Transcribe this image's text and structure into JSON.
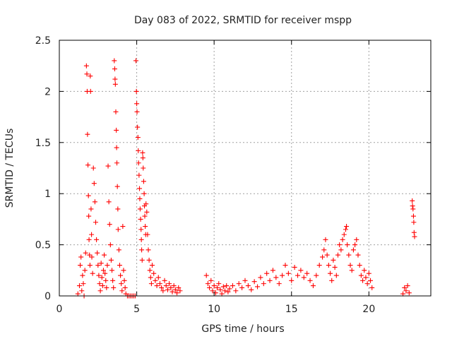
{
  "chart_data": {
    "type": "scatter",
    "title": "Day 083 of 2022, SRMTID for receiver mspp",
    "xlabel": "GPS time / hours",
    "ylabel": "SRMTID / TECUs",
    "xlim": [
      0,
      24
    ],
    "ylim": [
      0,
      2.5
    ],
    "xticks": [
      0,
      5,
      10,
      15,
      20
    ],
    "xtick_labels": [
      "0",
      "5",
      "10",
      "15",
      "20"
    ],
    "yticks": [
      0,
      0.5,
      1,
      1.5,
      2,
      2.5
    ],
    "ytick_labels": [
      "0",
      "0.5",
      "1",
      "1.5",
      "2",
      "2.5"
    ],
    "grid": true,
    "marker": "plus",
    "series": [
      {
        "name": "SRMTID",
        "color": "#ff0000",
        "points": [
          [
            1.2,
            0.02
          ],
          [
            1.3,
            0.1
          ],
          [
            1.35,
            0.3
          ],
          [
            1.4,
            0.38
          ],
          [
            1.45,
            0.05
          ],
          [
            1.5,
            0.2
          ],
          [
            1.55,
            0.12
          ],
          [
            1.6,
            0.0
          ],
          [
            1.65,
            0.25
          ],
          [
            1.7,
            0.42
          ],
          [
            1.75,
            2.25
          ],
          [
            1.78,
            2.17
          ],
          [
            1.8,
            2.0
          ],
          [
            1.82,
            1.58
          ],
          [
            1.85,
            1.28
          ],
          [
            1.88,
            0.98
          ],
          [
            1.9,
            0.78
          ],
          [
            1.92,
            0.55
          ],
          [
            1.95,
            0.4
          ],
          [
            1.98,
            0.3
          ],
          [
            2.0,
            2.15
          ],
          [
            2.02,
            2.0
          ],
          [
            2.05,
            0.85
          ],
          [
            2.08,
            0.6
          ],
          [
            2.1,
            0.38
          ],
          [
            2.15,
            0.22
          ],
          [
            2.2,
            1.25
          ],
          [
            2.25,
            1.1
          ],
          [
            2.3,
            0.92
          ],
          [
            2.35,
            0.72
          ],
          [
            2.4,
            0.55
          ],
          [
            2.45,
            0.42
          ],
          [
            2.5,
            0.3
          ],
          [
            2.55,
            0.2
          ],
          [
            2.6,
            0.12
          ],
          [
            2.65,
            0.05
          ],
          [
            2.7,
            0.32
          ],
          [
            2.75,
            0.18
          ],
          [
            2.8,
            0.1
          ],
          [
            2.85,
            0.25
          ],
          [
            2.9,
            0.4
          ],
          [
            2.95,
            0.22
          ],
          [
            3.0,
            0.15
          ],
          [
            3.05,
            0.08
          ],
          [
            3.1,
            0.3
          ],
          [
            3.15,
            1.27
          ],
          [
            3.2,
            0.92
          ],
          [
            3.25,
            0.7
          ],
          [
            3.3,
            0.5
          ],
          [
            3.35,
            0.35
          ],
          [
            3.4,
            0.25
          ],
          [
            3.45,
            0.15
          ],
          [
            3.5,
            0.08
          ],
          [
            3.55,
            2.3
          ],
          [
            3.58,
            2.22
          ],
          [
            3.6,
            2.12
          ],
          [
            3.62,
            2.07
          ],
          [
            3.65,
            1.8
          ],
          [
            3.68,
            1.62
          ],
          [
            3.7,
            1.45
          ],
          [
            3.72,
            1.3
          ],
          [
            3.75,
            1.07
          ],
          [
            3.78,
            0.85
          ],
          [
            3.8,
            0.65
          ],
          [
            3.85,
            0.45
          ],
          [
            3.9,
            0.3
          ],
          [
            3.95,
            0.2
          ],
          [
            4.0,
            0.12
          ],
          [
            4.05,
            0.05
          ],
          [
            4.1,
            0.68
          ],
          [
            4.15,
            0.25
          ],
          [
            4.2,
            0.15
          ],
          [
            4.25,
            0.08
          ],
          [
            4.3,
            0.02
          ],
          [
            4.4,
            0.0
          ],
          [
            4.5,
            0.0
          ],
          [
            4.6,
            0.0
          ],
          [
            4.7,
            0.0
          ],
          [
            4.8,
            0.0
          ],
          [
            4.9,
            0.0
          ],
          [
            4.95,
            2.3
          ],
          [
            4.98,
            2.0
          ],
          [
            5.0,
            1.88
          ],
          [
            5.02,
            1.8
          ],
          [
            5.05,
            1.65
          ],
          [
            5.08,
            1.55
          ],
          [
            5.1,
            1.42
          ],
          [
            5.12,
            1.3
          ],
          [
            5.15,
            1.18
          ],
          [
            5.18,
            1.05
          ],
          [
            5.2,
            0.95
          ],
          [
            5.22,
            0.85
          ],
          [
            5.25,
            0.75
          ],
          [
            5.28,
            0.65
          ],
          [
            5.3,
            0.55
          ],
          [
            5.32,
            0.45
          ],
          [
            5.35,
            0.35
          ],
          [
            5.38,
            1.4
          ],
          [
            5.4,
            1.35
          ],
          [
            5.42,
            1.25
          ],
          [
            5.45,
            1.12
          ],
          [
            5.48,
            1.0
          ],
          [
            5.5,
            0.88
          ],
          [
            5.52,
            0.78
          ],
          [
            5.55,
            0.68
          ],
          [
            5.58,
            0.6
          ],
          [
            5.6,
            0.9
          ],
          [
            5.65,
            0.82
          ],
          [
            5.7,
            0.6
          ],
          [
            5.75,
            0.45
          ],
          [
            5.8,
            0.35
          ],
          [
            5.85,
            0.25
          ],
          [
            5.9,
            0.18
          ],
          [
            5.95,
            0.12
          ],
          [
            6.0,
            0.3
          ],
          [
            6.1,
            0.22
          ],
          [
            6.2,
            0.15
          ],
          [
            6.3,
            0.1
          ],
          [
            6.4,
            0.18
          ],
          [
            6.5,
            0.12
          ],
          [
            6.6,
            0.08
          ],
          [
            6.7,
            0.05
          ],
          [
            6.8,
            0.15
          ],
          [
            6.9,
            0.1
          ],
          [
            7.0,
            0.06
          ],
          [
            7.1,
            0.12
          ],
          [
            7.2,
            0.08
          ],
          [
            7.3,
            0.04
          ],
          [
            7.4,
            0.1
          ],
          [
            7.5,
            0.06
          ],
          [
            7.6,
            0.03
          ],
          [
            7.7,
            0.08
          ],
          [
            7.8,
            0.05
          ],
          [
            9.5,
            0.2
          ],
          [
            9.6,
            0.12
          ],
          [
            9.7,
            0.08
          ],
          [
            9.8,
            0.15
          ],
          [
            9.9,
            0.05
          ],
          [
            10.0,
            0.1
          ],
          [
            10.1,
            0.03
          ],
          [
            10.2,
            0.08
          ],
          [
            10.3,
            0.12
          ],
          [
            10.4,
            0.06
          ],
          [
            10.5,
            0.02
          ],
          [
            10.6,
            0.09
          ],
          [
            10.7,
            0.05
          ],
          [
            10.8,
            0.1
          ],
          [
            10.9,
            0.04
          ],
          [
            11.0,
            0.07
          ],
          [
            11.2,
            0.1
          ],
          [
            11.4,
            0.05
          ],
          [
            11.6,
            0.12
          ],
          [
            11.8,
            0.08
          ],
          [
            12.0,
            0.15
          ],
          [
            12.2,
            0.1
          ],
          [
            12.4,
            0.06
          ],
          [
            12.6,
            0.14
          ],
          [
            12.8,
            0.09
          ],
          [
            13.0,
            0.18
          ],
          [
            13.2,
            0.12
          ],
          [
            13.4,
            0.22
          ],
          [
            13.6,
            0.15
          ],
          [
            13.8,
            0.25
          ],
          [
            14.0,
            0.18
          ],
          [
            14.2,
            0.12
          ],
          [
            14.4,
            0.2
          ],
          [
            14.6,
            0.3
          ],
          [
            14.8,
            0.22
          ],
          [
            15.0,
            0.15
          ],
          [
            15.2,
            0.28
          ],
          [
            15.4,
            0.2
          ],
          [
            15.6,
            0.25
          ],
          [
            15.8,
            0.18
          ],
          [
            16.0,
            0.22
          ],
          [
            16.2,
            0.15
          ],
          [
            16.4,
            0.1
          ],
          [
            16.6,
            0.2
          ],
          [
            16.8,
            0.3
          ],
          [
            17.0,
            0.38
          ],
          [
            17.1,
            0.45
          ],
          [
            17.2,
            0.55
          ],
          [
            17.3,
            0.4
          ],
          [
            17.4,
            0.3
          ],
          [
            17.5,
            0.22
          ],
          [
            17.6,
            0.15
          ],
          [
            17.7,
            0.35
          ],
          [
            17.8,
            0.28
          ],
          [
            17.9,
            0.2
          ],
          [
            18.0,
            0.4
          ],
          [
            18.1,
            0.5
          ],
          [
            18.2,
            0.45
          ],
          [
            18.3,
            0.55
          ],
          [
            18.4,
            0.6
          ],
          [
            18.5,
            0.65
          ],
          [
            18.55,
            0.68
          ],
          [
            18.6,
            0.5
          ],
          [
            18.7,
            0.4
          ],
          [
            18.8,
            0.3
          ],
          [
            18.9,
            0.25
          ],
          [
            19.0,
            0.45
          ],
          [
            19.1,
            0.5
          ],
          [
            19.2,
            0.55
          ],
          [
            19.3,
            0.4
          ],
          [
            19.4,
            0.3
          ],
          [
            19.5,
            0.2
          ],
          [
            19.6,
            0.15
          ],
          [
            19.7,
            0.25
          ],
          [
            19.8,
            0.18
          ],
          [
            19.9,
            0.12
          ],
          [
            20.0,
            0.22
          ],
          [
            20.1,
            0.15
          ],
          [
            20.2,
            0.08
          ],
          [
            22.2,
            0.02
          ],
          [
            22.3,
            0.08
          ],
          [
            22.4,
            0.05
          ],
          [
            22.5,
            0.1
          ],
          [
            22.6,
            0.03
          ],
          [
            22.8,
            0.93
          ],
          [
            22.82,
            0.88
          ],
          [
            22.85,
            0.85
          ],
          [
            22.88,
            0.78
          ],
          [
            22.9,
            0.72
          ],
          [
            22.92,
            0.62
          ],
          [
            22.95,
            0.58
          ]
        ]
      }
    ]
  }
}
